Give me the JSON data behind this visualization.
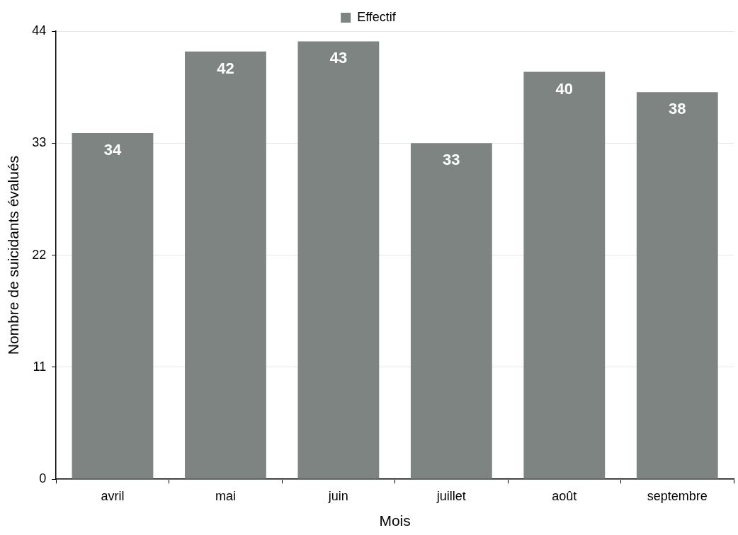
{
  "chart_data": {
    "type": "bar",
    "xlabel": "Mois",
    "ylabel": "Nombre de suicidants évalués",
    "categories": [
      "avril",
      "mai",
      "juin",
      "juillet",
      "août",
      "septembre"
    ],
    "series": [
      {
        "name": "Effectif",
        "color": "#7e8482",
        "values": [
          34,
          42,
          43,
          33,
          40,
          38
        ]
      }
    ],
    "ylim": [
      0,
      44
    ],
    "yticks": [
      0,
      11,
      22,
      33,
      44
    ],
    "grid": "y",
    "legend": "top",
    "data_labels": true
  }
}
